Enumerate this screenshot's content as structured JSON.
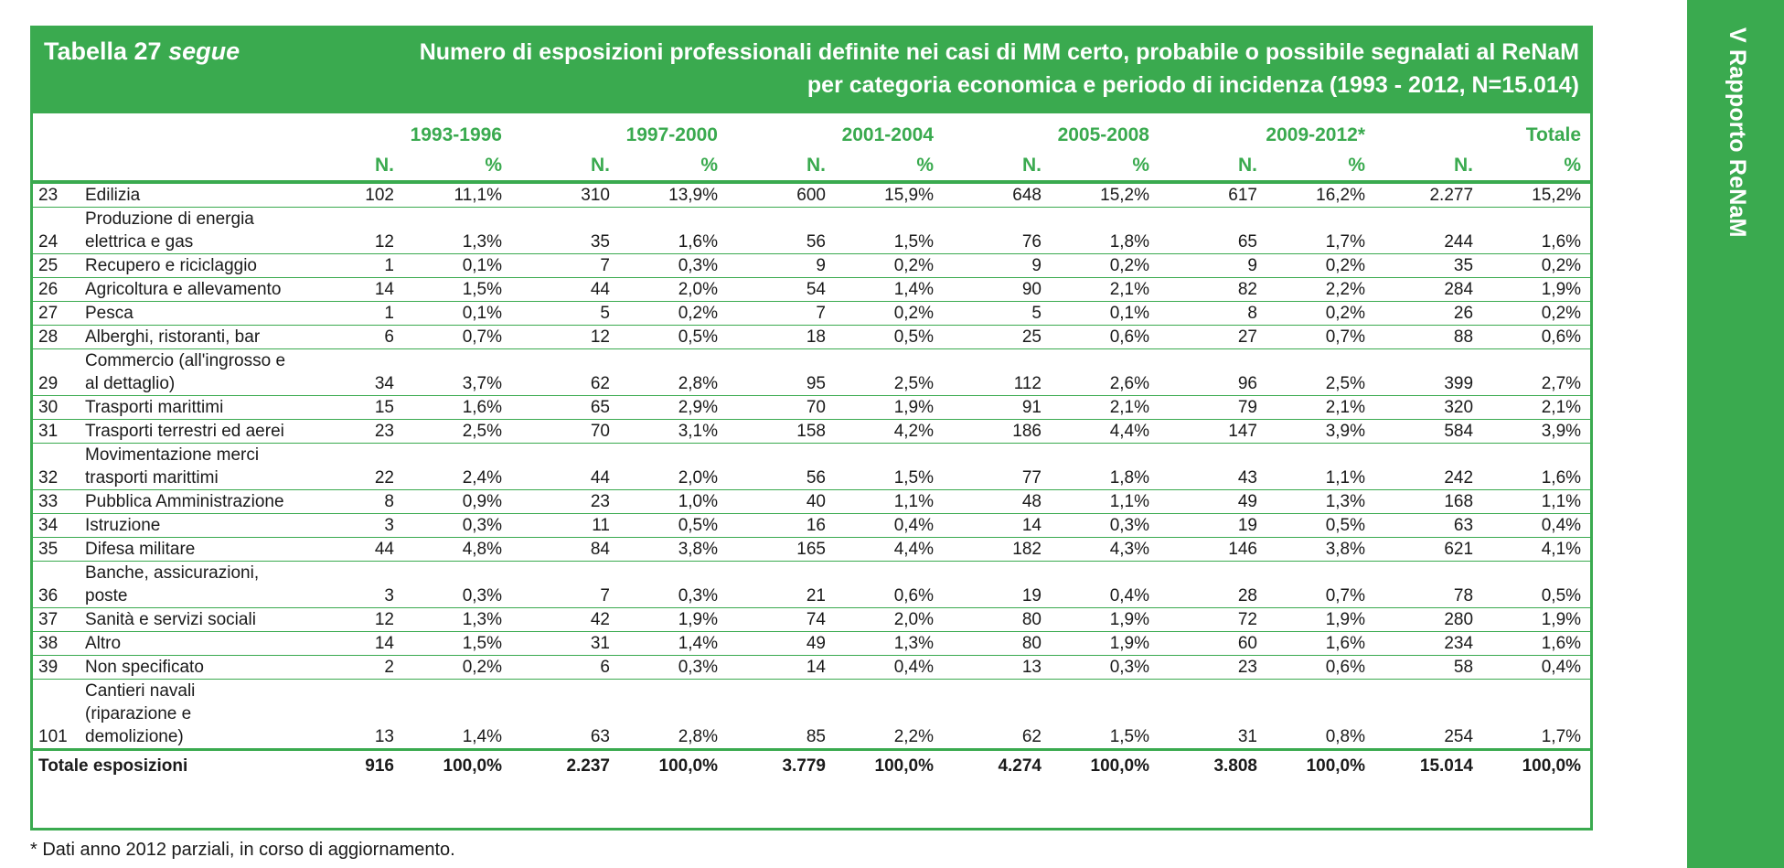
{
  "side_tab": "V Rapporto ReNaM",
  "title_left_main": "Tabella 27",
  "title_left_italic": "segue",
  "title_right_line1": "Numero di esposizioni professionali definite nei casi di MM certo, probabile o possibile segnalati al ReNaM",
  "title_right_line2": "per categoria economica e periodo di incidenza (1993 - 2012, N=15.014)",
  "periods": [
    "1993-1996",
    "1997-2000",
    "2001-2004",
    "2005-2008",
    "2009-2012*",
    "Totale"
  ],
  "sub_n": "N.",
  "sub_pct": "%",
  "rows": [
    {
      "code": "23",
      "cat": "Edilizia",
      "v": [
        "102",
        "11,1%",
        "310",
        "13,9%",
        "600",
        "15,9%",
        "648",
        "15,2%",
        "617",
        "16,2%",
        "2.277",
        "15,2%"
      ]
    },
    {
      "code": "24",
      "cat": "Produzione di energia elettrica e gas",
      "v": [
        "12",
        "1,3%",
        "35",
        "1,6%",
        "56",
        "1,5%",
        "76",
        "1,8%",
        "65",
        "1,7%",
        "244",
        "1,6%"
      ]
    },
    {
      "code": "25",
      "cat": "Recupero e riciclaggio",
      "v": [
        "1",
        "0,1%",
        "7",
        "0,3%",
        "9",
        "0,2%",
        "9",
        "0,2%",
        "9",
        "0,2%",
        "35",
        "0,2%"
      ]
    },
    {
      "code": "26",
      "cat": "Agricoltura e allevamento",
      "v": [
        "14",
        "1,5%",
        "44",
        "2,0%",
        "54",
        "1,4%",
        "90",
        "2,1%",
        "82",
        "2,2%",
        "284",
        "1,9%"
      ]
    },
    {
      "code": "27",
      "cat": "Pesca",
      "v": [
        "1",
        "0,1%",
        "5",
        "0,2%",
        "7",
        "0,2%",
        "5",
        "0,1%",
        "8",
        "0,2%",
        "26",
        "0,2%"
      ]
    },
    {
      "code": "28",
      "cat": "Alberghi, ristoranti, bar",
      "v": [
        "6",
        "0,7%",
        "12",
        "0,5%",
        "18",
        "0,5%",
        "25",
        "0,6%",
        "27",
        "0,7%",
        "88",
        "0,6%"
      ]
    },
    {
      "code": "29",
      "cat": "Commercio (all'ingrosso e al dettaglio)",
      "v": [
        "34",
        "3,7%",
        "62",
        "2,8%",
        "95",
        "2,5%",
        "112",
        "2,6%",
        "96",
        "2,5%",
        "399",
        "2,7%"
      ]
    },
    {
      "code": "30",
      "cat": "Trasporti marittimi",
      "v": [
        "15",
        "1,6%",
        "65",
        "2,9%",
        "70",
        "1,9%",
        "91",
        "2,1%",
        "79",
        "2,1%",
        "320",
        "2,1%"
      ]
    },
    {
      "code": "31",
      "cat": "Trasporti terrestri ed aerei",
      "v": [
        "23",
        "2,5%",
        "70",
        "3,1%",
        "158",
        "4,2%",
        "186",
        "4,4%",
        "147",
        "3,9%",
        "584",
        "3,9%"
      ]
    },
    {
      "code": "32",
      "cat": "Movimentazione merci trasporti marittimi",
      "v": [
        "22",
        "2,4%",
        "44",
        "2,0%",
        "56",
        "1,5%",
        "77",
        "1,8%",
        "43",
        "1,1%",
        "242",
        "1,6%"
      ]
    },
    {
      "code": "33",
      "cat": "Pubblica Amministrazione",
      "v": [
        "8",
        "0,9%",
        "23",
        "1,0%",
        "40",
        "1,1%",
        "48",
        "1,1%",
        "49",
        "1,3%",
        "168",
        "1,1%"
      ]
    },
    {
      "code": "34",
      "cat": "Istruzione",
      "v": [
        "3",
        "0,3%",
        "11",
        "0,5%",
        "16",
        "0,4%",
        "14",
        "0,3%",
        "19",
        "0,5%",
        "63",
        "0,4%"
      ]
    },
    {
      "code": "35",
      "cat": "Difesa militare",
      "v": [
        "44",
        "4,8%",
        "84",
        "3,8%",
        "165",
        "4,4%",
        "182",
        "4,3%",
        "146",
        "3,8%",
        "621",
        "4,1%"
      ]
    },
    {
      "code": "36",
      "cat": "Banche, assicurazioni, poste",
      "v": [
        "3",
        "0,3%",
        "7",
        "0,3%",
        "21",
        "0,6%",
        "19",
        "0,4%",
        "28",
        "0,7%",
        "78",
        "0,5%"
      ]
    },
    {
      "code": "37",
      "cat": "Sanità e servizi sociali",
      "v": [
        "12",
        "1,3%",
        "42",
        "1,9%",
        "74",
        "2,0%",
        "80",
        "1,9%",
        "72",
        "1,9%",
        "280",
        "1,9%"
      ]
    },
    {
      "code": "38",
      "cat": "Altro",
      "v": [
        "14",
        "1,5%",
        "31",
        "1,4%",
        "49",
        "1,3%",
        "80",
        "1,9%",
        "60",
        "1,6%",
        "234",
        "1,6%"
      ]
    },
    {
      "code": "39",
      "cat": "Non specificato",
      "v": [
        "2",
        "0,2%",
        "6",
        "0,3%",
        "14",
        "0,4%",
        "13",
        "0,3%",
        "23",
        "0,6%",
        "58",
        "0,4%"
      ]
    },
    {
      "code": "101",
      "cat": "Cantieri navali (riparazione e demolizione)",
      "v": [
        "13",
        "1,4%",
        "63",
        "2,8%",
        "85",
        "2,2%",
        "62",
        "1,5%",
        "31",
        "0,8%",
        "254",
        "1,7%"
      ]
    }
  ],
  "total": {
    "label": "Totale esposizioni",
    "v": [
      "916",
      "100,0%",
      "2.237",
      "100,0%",
      "3.779",
      "100,0%",
      "4.274",
      "100,0%",
      "3.808",
      "100,0%",
      "15.014",
      "100,0%"
    ]
  },
  "footnote": "* Dati anno 2012 parziali, in corso di aggiornamento."
}
